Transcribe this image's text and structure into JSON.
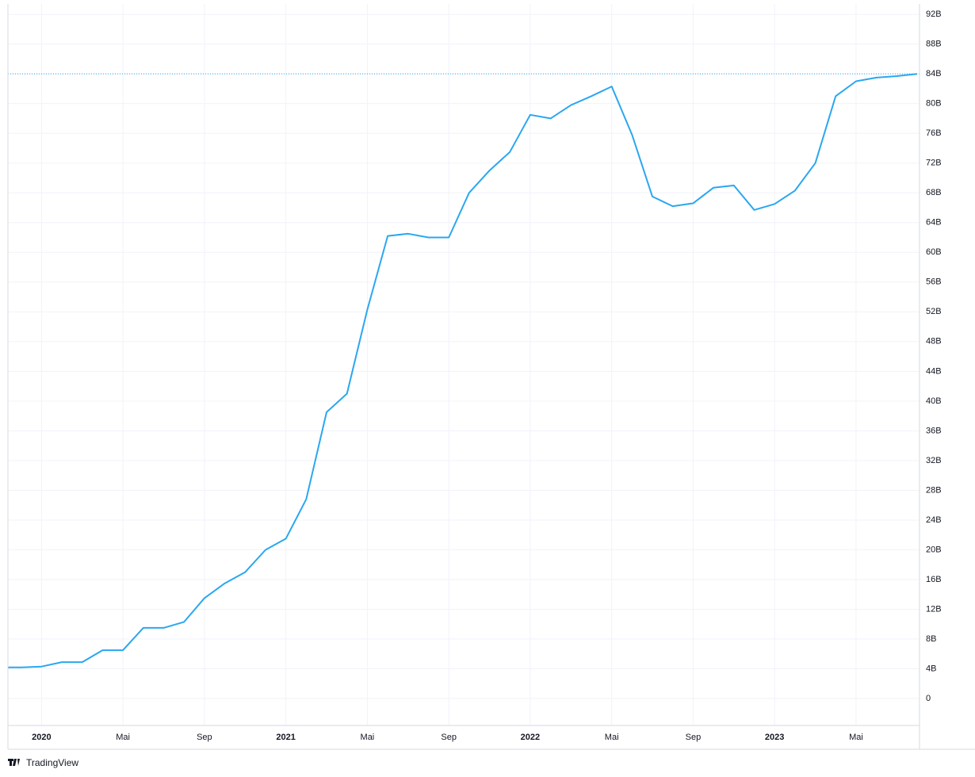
{
  "chart_data": {
    "type": "line",
    "x": [
      "2019-11",
      "2019-12",
      "2020-01",
      "2020-02",
      "2020-03",
      "2020-04",
      "2020-05",
      "2020-06",
      "2020-07",
      "2020-08",
      "2020-09",
      "2020-10",
      "2020-11",
      "2020-12",
      "2021-01",
      "2021-02",
      "2021-03",
      "2021-04",
      "2021-05",
      "2021-06",
      "2021-07",
      "2021-08",
      "2021-09",
      "2021-10",
      "2021-11",
      "2021-12",
      "2022-01",
      "2022-02",
      "2022-03",
      "2022-04",
      "2022-05",
      "2022-06",
      "2022-07",
      "2022-08",
      "2022-09",
      "2022-10",
      "2022-11",
      "2022-12",
      "2023-01",
      "2023-02",
      "2023-03",
      "2023-04",
      "2023-05",
      "2023-06",
      "2023-07",
      "2023-08"
    ],
    "series": [
      {
        "color": "#2aa7f0",
        "values": [
          4.2,
          4.2,
          4.3,
          4.9,
          4.9,
          6.5,
          6.5,
          9.5,
          9.5,
          10.3,
          13.5,
          15.5,
          17,
          20,
          21.5,
          26.8,
          38.5,
          41,
          52.3,
          62.2,
          62.5,
          62,
          62,
          68,
          71,
          73.5,
          78.5,
          78,
          79.8,
          81,
          82.3,
          75.8,
          67.5,
          66.2,
          66.6,
          68.7,
          69,
          65.7,
          66.5,
          68.3,
          72,
          81,
          83,
          83.5,
          83.7,
          84
        ]
      }
    ],
    "xlim": [
      "2019-11",
      "2023-08"
    ],
    "xticks": [
      {
        "value": "2020-01",
        "label": "2020"
      },
      {
        "value": "2020-05",
        "label": "Mai"
      },
      {
        "value": "2020-09",
        "label": "Sep"
      },
      {
        "value": "2021-01",
        "label": "2021"
      },
      {
        "value": "2021-05",
        "label": "Mai"
      },
      {
        "value": "2021-09",
        "label": "Sep"
      },
      {
        "value": "2022-01",
        "label": "2022"
      },
      {
        "value": "2022-05",
        "label": "Mai"
      },
      {
        "value": "2022-09",
        "label": "Sep"
      },
      {
        "value": "2023-01",
        "label": "2023"
      },
      {
        "value": "2023-05",
        "label": "Mai"
      }
    ],
    "ylim": [
      -3.62,
      93.4
    ],
    "yticks": [
      0,
      {
        "value": 4,
        "label": "4B"
      },
      {
        "value": 8,
        "label": "8B"
      },
      {
        "value": 12,
        "label": "12B"
      },
      {
        "value": 16,
        "label": "16B"
      },
      {
        "value": 20,
        "label": "20B"
      },
      {
        "value": 24,
        "label": "24B"
      },
      {
        "value": 28,
        "label": "28B"
      },
      {
        "value": 32,
        "label": "32B"
      },
      {
        "value": 36,
        "label": "36B"
      },
      {
        "value": 40,
        "label": "40B"
      },
      {
        "value": 44,
        "label": "44B"
      },
      {
        "value": 48,
        "label": "48B"
      },
      {
        "value": 52,
        "label": "52B"
      },
      {
        "value": 56,
        "label": "56B"
      },
      {
        "value": 60,
        "label": "60B"
      },
      {
        "value": 64,
        "label": "64B"
      },
      {
        "value": 68,
        "label": "68B"
      },
      {
        "value": 72,
        "label": "72B"
      },
      {
        "value": 76,
        "label": "76B"
      },
      {
        "value": 80,
        "label": "80B"
      },
      {
        "value": 84,
        "label": "84B"
      },
      {
        "value": 88,
        "label": "88B"
      },
      {
        "value": 92,
        "label": "92B"
      }
    ],
    "grid": true,
    "branding": "TradingView"
  }
}
